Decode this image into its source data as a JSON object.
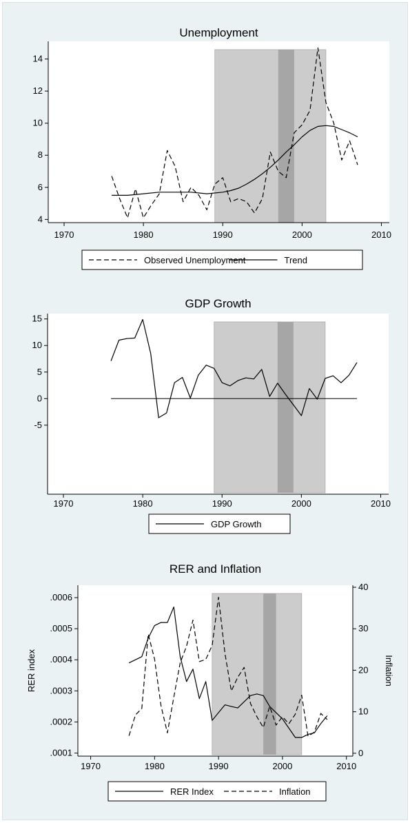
{
  "chart_data": [
    {
      "type": "line",
      "title": "Unemployment",
      "xlabel": "",
      "ylabel": "",
      "xlim": [
        1968,
        2011
      ],
      "ylim": [
        3.8,
        15.1
      ],
      "x_ticks": [
        "1970",
        "1980",
        "1990",
        "2000",
        "2010"
      ],
      "y_ticks": [
        "4",
        "6",
        "8",
        "10",
        "12",
        "14"
      ],
      "shaded_periods": [
        {
          "start": 1989,
          "end": 2003,
          "shade": "light"
        },
        {
          "start": 1997,
          "end": 1999,
          "shade": "dark"
        }
      ],
      "legend_position": "bottom",
      "series": [
        {
          "name": "Observed Unemployment",
          "style": "dashed",
          "x": [
            1976,
            1977,
            1978,
            1979,
            1980,
            1981,
            1982,
            1983,
            1984,
            1985,
            1986,
            1987,
            1988,
            1989,
            1990,
            1991,
            1992,
            1993,
            1994,
            1995,
            1996,
            1997,
            1998,
            1999,
            2000,
            2001,
            2002,
            2003,
            2004,
            2005,
            2006,
            2007
          ],
          "values": [
            6.7,
            5.3,
            4.1,
            5.9,
            4.1,
            4.9,
            5.6,
            8.3,
            7.3,
            5.1,
            6.0,
            5.5,
            4.6,
            6.2,
            6.6,
            5.1,
            5.3,
            5.1,
            4.4,
            5.3,
            8.2,
            7.0,
            6.6,
            9.4,
            9.9,
            10.8,
            14.7,
            11.3,
            10.0,
            7.7,
            8.9,
            7.4
          ]
        },
        {
          "name": "Trend",
          "style": "solid",
          "x": [
            1976,
            1978,
            1980,
            1982,
            1984,
            1986,
            1988,
            1990,
            1991,
            1992,
            1993,
            1994,
            1995,
            1996,
            1997,
            1998,
            1999,
            2000,
            2001,
            2002,
            2003,
            2004,
            2005,
            2006,
            2007
          ],
          "values": [
            5.5,
            5.5,
            5.6,
            5.7,
            5.7,
            5.7,
            5.6,
            5.7,
            5.8,
            5.95,
            6.2,
            6.5,
            6.85,
            7.25,
            7.7,
            8.2,
            8.65,
            9.15,
            9.55,
            9.8,
            9.85,
            9.8,
            9.6,
            9.4,
            9.15
          ]
        }
      ]
    },
    {
      "type": "line",
      "title": "GDP Growth",
      "xlabel": "",
      "ylabel": "",
      "xlim": [
        1968,
        2011
      ],
      "ylim": [
        -18,
        16
      ],
      "x_ticks": [
        "1970",
        "1980",
        "1990",
        "2000",
        "2010"
      ],
      "y_ticks": [
        "-5",
        "0",
        "5",
        "10",
        "15"
      ],
      "zero_line": true,
      "shaded_periods": [
        {
          "start": 1989,
          "end": 2003,
          "shade": "light"
        },
        {
          "start": 1997,
          "end": 1999,
          "shade": "dark"
        }
      ],
      "legend_position": "bottom",
      "series": [
        {
          "name": "GDP Growth",
          "style": "solid",
          "x": [
            1976,
            1977,
            1978,
            1979,
            1980,
            1981,
            1982,
            1983,
            1984,
            1985,
            1986,
            1987,
            1988,
            1989,
            1990,
            1991,
            1992,
            1993,
            1994,
            1995,
            1996,
            1997,
            1998,
            1999,
            2000,
            2001,
            2002,
            2003,
            2004,
            2005,
            2006,
            2007
          ],
          "values": [
            7.1,
            11.0,
            11.3,
            11.4,
            14.9,
            8.5,
            -3.6,
            -2.7,
            3.0,
            4.0,
            0.1,
            4.4,
            6.3,
            5.7,
            3.0,
            2.4,
            3.4,
            3.9,
            3.7,
            5.5,
            0.4,
            2.9,
            0.8,
            -1.2,
            -3.2,
            1.9,
            -0.1,
            3.8,
            4.3,
            3.0,
            4.4,
            6.8
          ]
        }
      ]
    },
    {
      "type": "line",
      "title": "RER and Inflation",
      "ylabel": "RER index",
      "y2label": "Inflation",
      "xlim": [
        1968,
        2011
      ],
      "ylim": [
        9e-05,
        0.00064
      ],
      "y2lim": [
        -0.7,
        40.5
      ],
      "x_ticks": [
        "1970",
        "1980",
        "1990",
        "2000",
        "2010"
      ],
      "y_ticks": [
        ".0001",
        ".0002",
        ".0003",
        ".0004",
        ".0005",
        ".0006"
      ],
      "y2_ticks": [
        "0",
        "10",
        "20",
        "30",
        "40"
      ],
      "shaded_periods": [
        {
          "start": 1989,
          "end": 2003,
          "shade": "light"
        },
        {
          "start": 1997,
          "end": 1999,
          "shade": "dark"
        }
      ],
      "legend_position": "bottom",
      "series": [
        {
          "name": "RER Index",
          "style": "solid",
          "axis": "left",
          "x": [
            1976,
            1977,
            1978,
            1979,
            1980,
            1981,
            1982,
            1983,
            1984,
            1985,
            1986,
            1987,
            1988,
            1989,
            1990,
            1991,
            1992,
            1993,
            1994,
            1995,
            1996,
            1997,
            1998,
            1999,
            2000,
            2001,
            2002,
            2003,
            2004,
            2005,
            2006,
            2007
          ],
          "values": [
            0.00039,
            0.0004,
            0.00041,
            0.00047,
            0.00051,
            0.00052,
            0.00052,
            0.00057,
            0.00041,
            0.00033,
            0.00037,
            0.000275,
            0.00033,
            0.000205,
            0.00023,
            0.000255,
            0.00025,
            0.000245,
            0.000265,
            0.000285,
            0.00029,
            0.000285,
            0.00025,
            0.00023,
            0.00021,
            0.00018,
            0.00015,
            0.00015,
            0.00016,
            0.000165,
            0.000195,
            0.00022
          ]
        },
        {
          "name": "Inflation",
          "style": "dashed",
          "axis": "right",
          "x": [
            1976,
            1977,
            1978,
            1979,
            1980,
            1981,
            1982,
            1983,
            1984,
            1985,
            1986,
            1987,
            1988,
            1989,
            1990,
            1991,
            1992,
            1993,
            1994,
            1995,
            1996,
            1997,
            1998,
            1999,
            2000,
            2001,
            2002,
            2003,
            2004,
            2005,
            2006,
            2007
          ],
          "values": [
            4.2,
            9.2,
            10.8,
            28.7,
            22.7,
            11.5,
            4.9,
            13.5,
            21.8,
            25.8,
            32.1,
            22.1,
            22.6,
            26.0,
            37.6,
            24.1,
            15.0,
            18.3,
            20.7,
            12.0,
            8.8,
            6.2,
            11.3,
            6.8,
            8.8,
            7.1,
            9.4,
            14.0,
            4.1,
            5.1,
            9.6,
            8.1
          ]
        }
      ]
    }
  ]
}
